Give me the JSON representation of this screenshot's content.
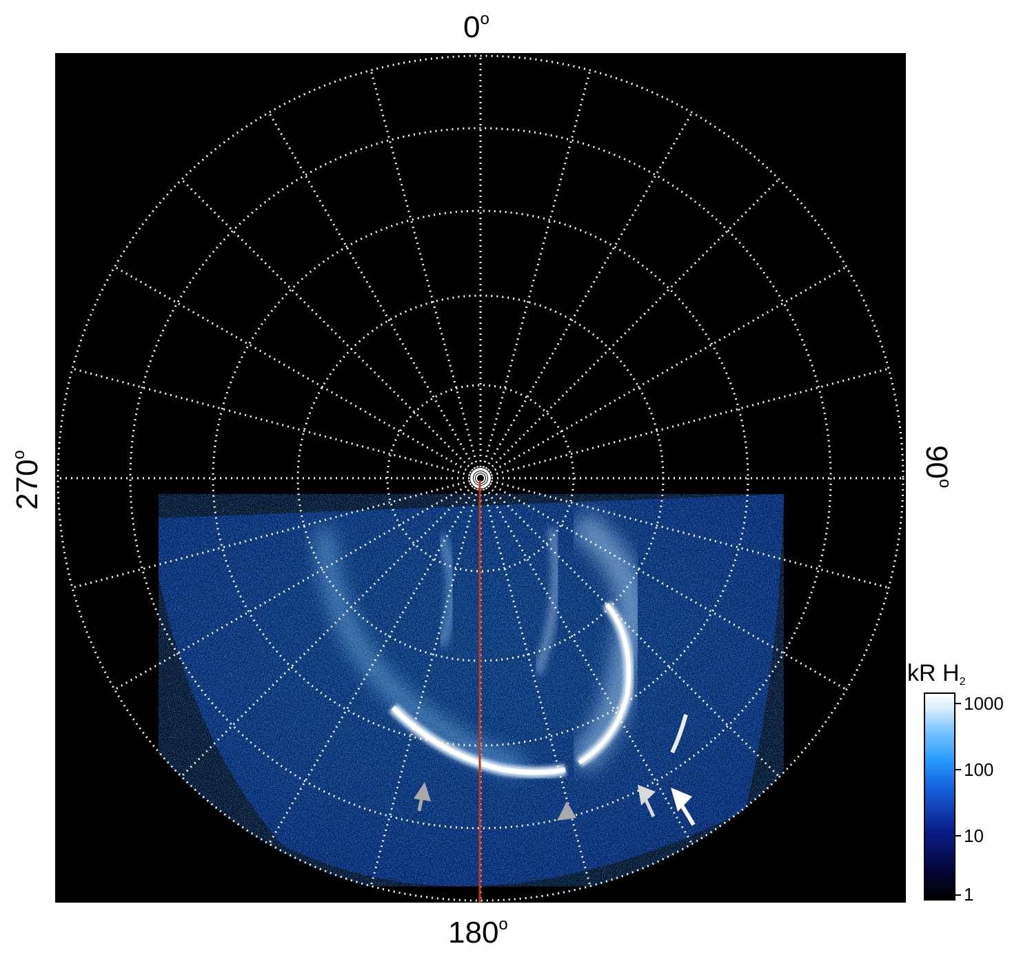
{
  "axis_labels": {
    "top": "0",
    "bottom": "180",
    "left": "270",
    "right": "90",
    "degree_mark": "o"
  },
  "colorbar": {
    "unit": "kR H",
    "subscript": "2",
    "ticks": [
      "1000",
      "100",
      "10",
      "1"
    ],
    "colors": {
      "low": "#000000",
      "mid_low": "#0a1f8c",
      "mid": "#1565e0",
      "mid_high": "#2a9cff",
      "high": "#ffffff"
    }
  },
  "overlay": {
    "grid_color": "#ffffff",
    "meridian_color": "#c0391b",
    "arrow_colors": [
      "#a9a9a9",
      "#ffffff"
    ]
  }
}
